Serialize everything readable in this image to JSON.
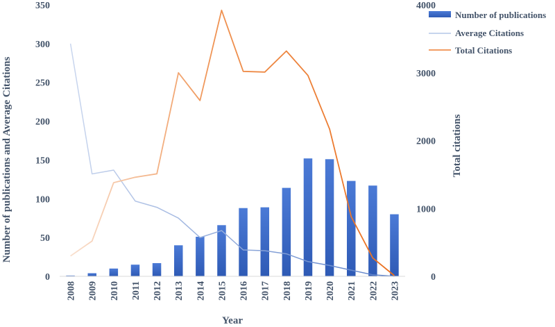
{
  "chart_data": {
    "type": "bar",
    "categories": [
      "2008",
      "2009",
      "2010",
      "2011",
      "2012",
      "2013",
      "2014",
      "2015",
      "2016",
      "2017",
      "2018",
      "2019",
      "2020",
      "2021",
      "2022",
      "2023"
    ],
    "series": [
      {
        "name": "Number of publications",
        "axis": "left",
        "kind": "bar",
        "values": [
          1,
          4,
          10,
          15,
          17,
          40,
          51,
          66,
          88,
          89,
          114,
          152,
          151,
          123,
          117,
          80
        ]
      },
      {
        "name": "Average Citations",
        "axis": "left",
        "kind": "line",
        "values": [
          300,
          132,
          137,
          97,
          89,
          75,
          50,
          59,
          34,
          33,
          29,
          19,
          14,
          8,
          2,
          0
        ]
      },
      {
        "name": "Total Citations",
        "axis": "right",
        "kind": "line",
        "values": [
          300,
          520,
          1380,
          1460,
          1510,
          3000,
          2590,
          3920,
          3020,
          3010,
          3320,
          2960,
          2170,
          880,
          270,
          10
        ]
      }
    ],
    "xlabel": "Year",
    "ylabel": "Number of publications and Average Citations",
    "y2label": "Total citations",
    "ylim": [
      0,
      350
    ],
    "y2lim": [
      0,
      4000
    ],
    "yticks": [
      "0",
      "50",
      "100",
      "150",
      "200",
      "250",
      "300",
      "350"
    ],
    "y2ticks": [
      "0",
      "1000",
      "2000",
      "3000",
      "4000"
    ],
    "legend_position": "top-right",
    "colors": {
      "bar_top": "#4472c4",
      "bar_bottom": "#2f5cb8",
      "avg_line": "#b4c7e7",
      "total_line": "#ed7d31",
      "text": "#44546a"
    }
  }
}
